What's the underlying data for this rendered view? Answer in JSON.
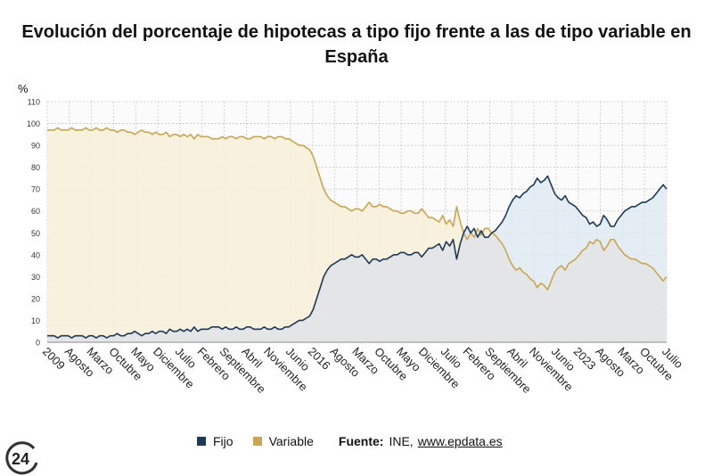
{
  "title": {
    "line1": "Evolución del porcentaje de hipotecas a tipo fijo frente a las de tipo variable en",
    "line2": "España"
  },
  "legend": {
    "fijo_label": "Fijo",
    "variable_label": "Variable",
    "source_label": "Fuente:",
    "source_name": "INE,",
    "source_link": "www.epdata.es"
  },
  "logo": {
    "text": "24"
  },
  "colors": {
    "fijo": "#1f3a57",
    "variable": "#c9a654",
    "fijo_fill": "#dde8f2",
    "variable_fill": "#f6efd9",
    "grid": "#c8c8c8",
    "plot_bg": "#fbfbfb"
  },
  "chart_data": {
    "type": "area",
    "ylabel": "%",
    "ylim": [
      0,
      110
    ],
    "yticks": [
      0,
      10,
      20,
      30,
      40,
      50,
      60,
      70,
      80,
      90,
      100,
      110
    ],
    "grid": true,
    "legend_position": "bottom",
    "xticks": [
      "2009",
      "Agosto",
      "Marzo",
      "Octubre",
      "Mayo",
      "Diciembre",
      "Julio",
      "Febrero",
      "Septiembre",
      "Abril",
      "Noviembre",
      "Junio",
      "2016",
      "Agosto",
      "Marzo",
      "Octubre",
      "Mayo",
      "Diciembre",
      "Julio",
      "Febrero",
      "Septiembre",
      "Abril",
      "Noviembre",
      "Junio",
      "2023",
      "Agosto",
      "Marzo",
      "Octubre",
      "Julio"
    ],
    "series": [
      {
        "name": "Fijo",
        "values": [
          3,
          3,
          3,
          2,
          3,
          3,
          3,
          2,
          3,
          3,
          3,
          2,
          3,
          3,
          2,
          3,
          3,
          2,
          3,
          3,
          4,
          3,
          3,
          4,
          4,
          5,
          4,
          3,
          4,
          4,
          5,
          4,
          5,
          5,
          4,
          6,
          5,
          5,
          6,
          5,
          6,
          5,
          7,
          5,
          6,
          6,
          6,
          7,
          7,
          7,
          6,
          7,
          6,
          6,
          7,
          6,
          6,
          7,
          7,
          6,
          6,
          6,
          7,
          6,
          6,
          7,
          6,
          6,
          7,
          7,
          8,
          9,
          10,
          10,
          11,
          12,
          15,
          20,
          25,
          30,
          33,
          35,
          36,
          37,
          38,
          38,
          39,
          40,
          39,
          39,
          40,
          38,
          36,
          38,
          38,
          37,
          38,
          38,
          39,
          40,
          40,
          41,
          41,
          40,
          40,
          41,
          41,
          39,
          41,
          43,
          43,
          44,
          45,
          42,
          46,
          44,
          47,
          38,
          45,
          50,
          53,
          50,
          52,
          48,
          51,
          48,
          48,
          50,
          51,
          53,
          55,
          58,
          62,
          65,
          67,
          66,
          68,
          69,
          71,
          72,
          75,
          73,
          74,
          76,
          72,
          68,
          66,
          65,
          67,
          64,
          63,
          62,
          60,
          58,
          57,
          54,
          55,
          53,
          54,
          58,
          56,
          53,
          53,
          56,
          58,
          60,
          61,
          62,
          62,
          63,
          64,
          64,
          65,
          66,
          68,
          70,
          72,
          70
        ],
        "x_start": "2009",
        "step": "mes"
      },
      {
        "name": "Variable",
        "values": [
          97,
          97,
          97,
          98,
          97,
          97,
          97,
          98,
          97,
          97,
          97,
          98,
          97,
          97,
          98,
          97,
          97,
          98,
          97,
          97,
          96,
          97,
          97,
          96,
          96,
          95,
          96,
          97,
          96,
          96,
          95,
          96,
          95,
          95,
          96,
          94,
          95,
          95,
          94,
          95,
          94,
          95,
          93,
          95,
          94,
          94,
          94,
          93,
          93,
          93,
          94,
          93,
          94,
          94,
          93,
          94,
          94,
          93,
          93,
          94,
          94,
          94,
          93,
          94,
          94,
          93,
          94,
          94,
          93,
          93,
          92,
          91,
          90,
          90,
          89,
          88,
          85,
          80,
          75,
          70,
          67,
          65,
          64,
          63,
          62,
          62,
          61,
          60,
          61,
          61,
          60,
          62,
          64,
          62,
          62,
          63,
          62,
          62,
          61,
          60,
          60,
          59,
          59,
          60,
          60,
          59,
          59,
          61,
          59,
          57,
          57,
          56,
          55,
          58,
          54,
          56,
          53,
          62,
          55,
          50,
          47,
          50,
          48,
          52,
          49,
          52,
          52,
          50,
          49,
          47,
          45,
          42,
          38,
          35,
          33,
          34,
          32,
          31,
          29,
          28,
          25,
          27,
          26,
          24,
          28,
          32,
          34,
          35,
          33,
          36,
          37,
          38,
          40,
          42,
          43,
          46,
          45,
          47,
          46,
          42,
          44,
          47,
          47,
          44,
          42,
          40,
          39,
          38,
          38,
          37,
          36,
          36,
          35,
          34,
          32,
          30,
          28,
          30
        ]
      }
    ]
  }
}
